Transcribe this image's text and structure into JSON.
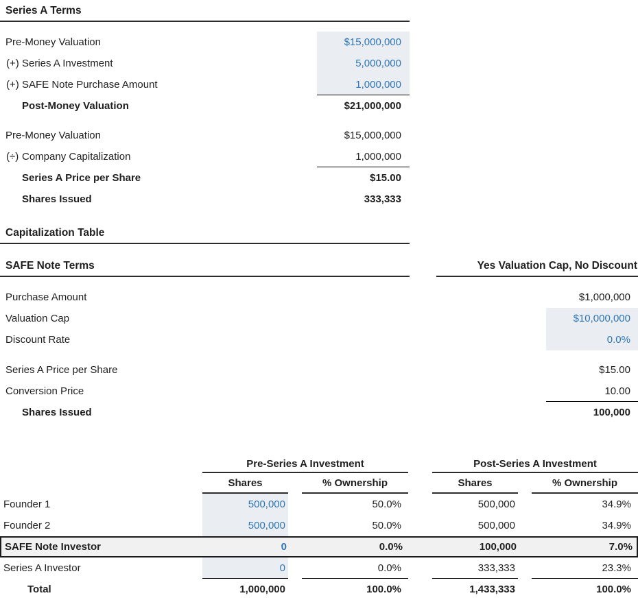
{
  "colors": {
    "input_text": "#2e75b6",
    "input_bg": "#eaeef2",
    "highlight_row_bg": "#f1f1f1",
    "rule": "#2b2b2b"
  },
  "series_a_terms": {
    "title": "Series A Terms",
    "rows": [
      {
        "prefix": "",
        "label": "Pre-Money Valuation",
        "value": "$15,000,000"
      },
      {
        "prefix": "(+)",
        "label": "Series A Investment",
        "value": "5,000,000"
      },
      {
        "prefix": "(+)",
        "label": "SAFE Note Purchase Amount",
        "value": "1,000,000"
      },
      {
        "prefix": "",
        "label": "Post-Money Valuation",
        "value": "$21,000,000"
      },
      {
        "prefix": "",
        "label": "Pre-Money Valuation",
        "value": "$15,000,000"
      },
      {
        "prefix": "(÷)",
        "label": "Company Capitalization",
        "value": "1,000,000"
      },
      {
        "prefix": "",
        "label": "Series A Price per Share",
        "value": "$15.00"
      },
      {
        "prefix": "",
        "label": "Shares Issued",
        "value": "333,333"
      }
    ]
  },
  "cap_table_heading": "Capitalization Table",
  "safe_note_terms": {
    "title": "SAFE Note Terms",
    "scenario": "Yes Valuation Cap, No Discount",
    "rows": [
      {
        "label": "Purchase Amount",
        "value": "$1,000,000"
      },
      {
        "label": "Valuation Cap",
        "value": "$10,000,000"
      },
      {
        "label": "Discount Rate",
        "value": "0.0%"
      },
      {
        "label": "Series A Price per Share",
        "value": "$15.00"
      },
      {
        "label": "Conversion Price",
        "value": "10.00"
      },
      {
        "label": "Shares Issued",
        "value": "100,000"
      }
    ]
  },
  "captable": {
    "group_headers": {
      "pre": "Pre-Series A Investment",
      "post": "Post-Series A Investment"
    },
    "col_headers": {
      "shares": "Shares",
      "ownership": "% Ownership"
    },
    "rows": [
      {
        "label": "Founder 1",
        "pre_shares": "500,000",
        "pre_own": "50.0%",
        "post_shares": "500,000",
        "post_own": "34.9%"
      },
      {
        "label": "Founder 2",
        "pre_shares": "500,000",
        "pre_own": "50.0%",
        "post_shares": "500,000",
        "post_own": "34.9%"
      },
      {
        "label": "SAFE Note Investor",
        "pre_shares": "0",
        "pre_own": "0.0%",
        "post_shares": "100,000",
        "post_own": "7.0%"
      },
      {
        "label": "Series A Investor",
        "pre_shares": "0",
        "pre_own": "0.0%",
        "post_shares": "333,333",
        "post_own": "23.3%"
      },
      {
        "label": "Total",
        "pre_shares": "1,000,000",
        "pre_own": "100.0%",
        "post_shares": "1,433,333",
        "post_own": "100.0%"
      }
    ]
  }
}
